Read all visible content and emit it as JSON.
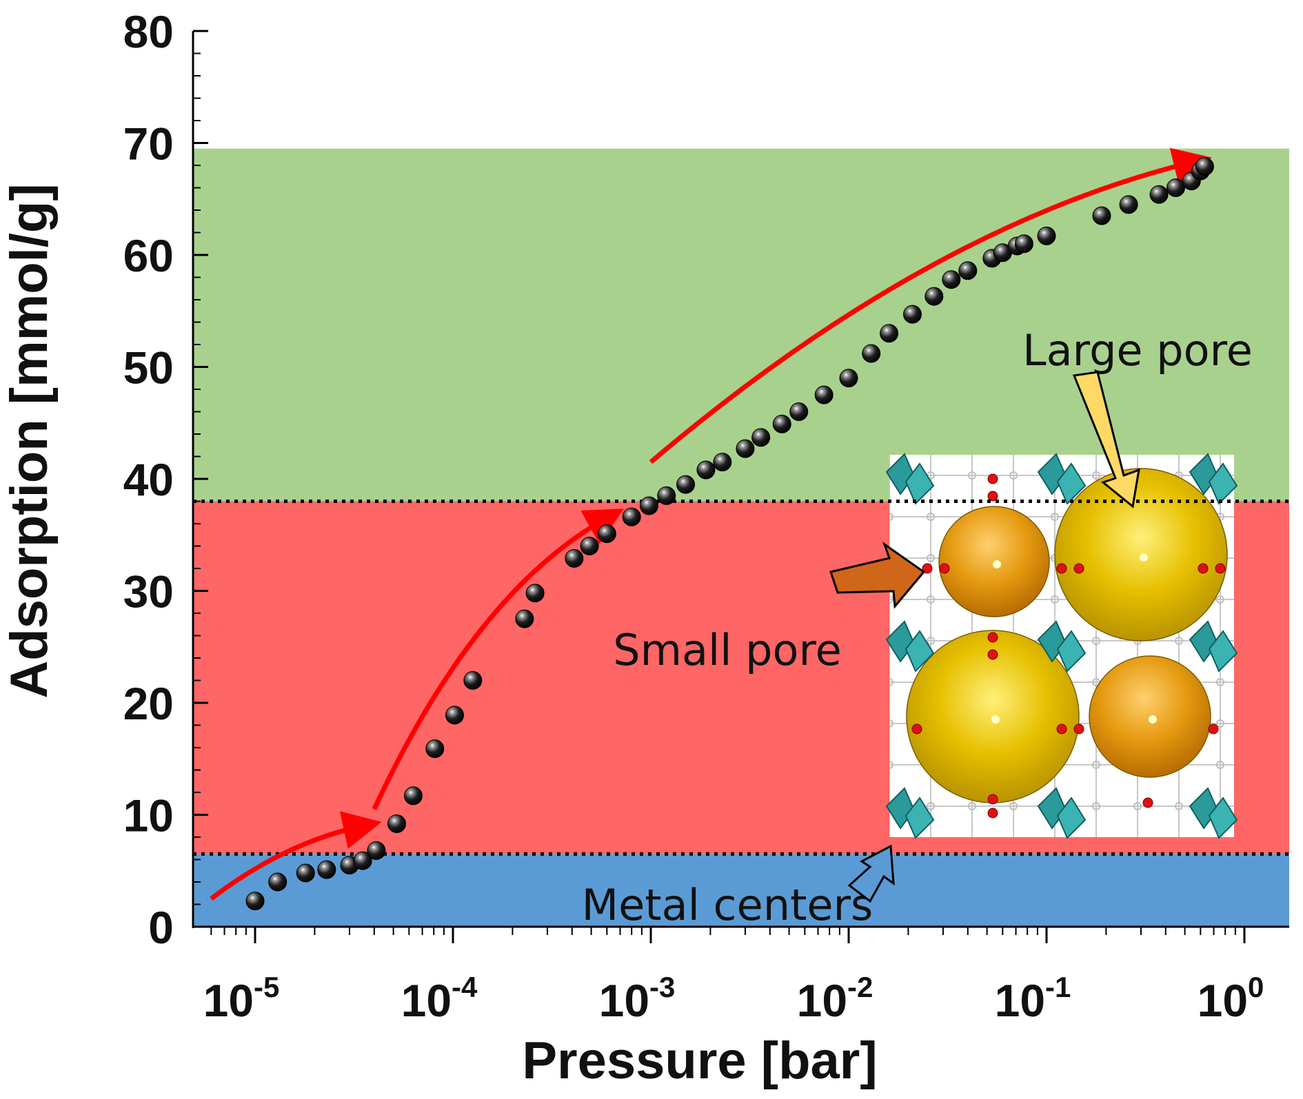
{
  "chart_data": {
    "type": "scatter",
    "xlabel": "Pressure [bar]",
    "ylabel": "Adsorption [mmol/g]",
    "x_scale": "log",
    "xlim": [
      5e-06,
      1.8
    ],
    "ylim": [
      0,
      80
    ],
    "y_ticks": [
      0,
      10,
      20,
      30,
      40,
      50,
      60,
      70,
      80
    ],
    "x_ticks": [
      {
        "base": "10",
        "exp": "-5",
        "value": 1e-05
      },
      {
        "base": "10",
        "exp": "-4",
        "value": 0.0001
      },
      {
        "base": "10",
        "exp": "-3",
        "value": 0.001
      },
      {
        "base": "10",
        "exp": "-2",
        "value": 0.01
      },
      {
        "base": "10",
        "exp": "-1",
        "value": 0.1
      },
      {
        "base": "10",
        "exp": "0",
        "value": 1
      }
    ],
    "regions": [
      {
        "name": "metal-centers",
        "y_from": 0,
        "y_to": 6.5,
        "color": "#5b9bd5"
      },
      {
        "name": "small-pore",
        "y_from": 6.5,
        "y_to": 38,
        "color": "#ff6666"
      },
      {
        "name": "large-pore",
        "y_from": 38,
        "y_to": 69.5,
        "color": "#a9d18e"
      }
    ],
    "boundaries": [
      6.5,
      38
    ],
    "series": [
      {
        "marker": "black-sphere",
        "points": [
          {
            "x": 1e-05,
            "y": 2.3
          },
          {
            "x": 1.3e-05,
            "y": 4.0
          },
          {
            "x": 1.8e-05,
            "y": 4.8
          },
          {
            "x": 2.3e-05,
            "y": 5.1
          },
          {
            "x": 3e-05,
            "y": 5.5
          },
          {
            "x": 3.5e-05,
            "y": 5.9
          },
          {
            "x": 4.1e-05,
            "y": 6.8
          },
          {
            "x": 5.2e-05,
            "y": 9.2
          },
          {
            "x": 6.3e-05,
            "y": 11.7
          },
          {
            "x": 8.1e-05,
            "y": 15.9
          },
          {
            "x": 0.000102,
            "y": 18.9
          },
          {
            "x": 0.000126,
            "y": 22.0
          },
          {
            "x": 0.00023,
            "y": 27.5
          },
          {
            "x": 0.00026,
            "y": 29.8
          },
          {
            "x": 0.00041,
            "y": 32.9
          },
          {
            "x": 0.00049,
            "y": 34.0
          },
          {
            "x": 0.0006,
            "y": 35.1
          },
          {
            "x": 0.0008,
            "y": 36.6
          },
          {
            "x": 0.00098,
            "y": 37.6
          },
          {
            "x": 0.0012,
            "y": 38.5
          },
          {
            "x": 0.0015,
            "y": 39.5
          },
          {
            "x": 0.0019,
            "y": 40.8
          },
          {
            "x": 0.0023,
            "y": 41.5
          },
          {
            "x": 0.003,
            "y": 42.7
          },
          {
            "x": 0.0036,
            "y": 43.7
          },
          {
            "x": 0.0046,
            "y": 44.9
          },
          {
            "x": 0.0056,
            "y": 46.0
          },
          {
            "x": 0.0075,
            "y": 47.5
          },
          {
            "x": 0.01,
            "y": 49.0
          },
          {
            "x": 0.013,
            "y": 51.2
          },
          {
            "x": 0.016,
            "y": 53.0
          },
          {
            "x": 0.021,
            "y": 54.7
          },
          {
            "x": 0.027,
            "y": 56.3
          },
          {
            "x": 0.033,
            "y": 57.8
          },
          {
            "x": 0.04,
            "y": 58.6
          },
          {
            "x": 0.053,
            "y": 59.7
          },
          {
            "x": 0.06,
            "y": 60.2
          },
          {
            "x": 0.071,
            "y": 60.8
          },
          {
            "x": 0.077,
            "y": 61.0
          },
          {
            "x": 0.1,
            "y": 61.7
          },
          {
            "x": 0.19,
            "y": 63.5
          },
          {
            "x": 0.26,
            "y": 64.5
          },
          {
            "x": 0.37,
            "y": 65.4
          },
          {
            "x": 0.45,
            "y": 66.0
          },
          {
            "x": 0.54,
            "y": 66.6
          },
          {
            "x": 0.6,
            "y": 67.5
          },
          {
            "x": 0.63,
            "y": 67.9
          }
        ]
      }
    ],
    "trend_arrows": [
      {
        "color": "#ff0000",
        "path": [
          [
            6e-06,
            2.5
          ],
          [
            1.4e-05,
            7.5
          ],
          [
            3.5e-05,
            9.0
          ]
        ]
      },
      {
        "color": "#ff0000",
        "path": [
          [
            4e-05,
            10.5
          ],
          [
            0.00013,
            30.0
          ],
          [
            0.0006,
            36.5
          ]
        ]
      },
      {
        "color": "#ff0000",
        "path": [
          [
            0.001,
            41.5
          ],
          [
            0.025,
            62.5
          ],
          [
            0.55,
            68.3
          ]
        ]
      }
    ],
    "annotations": [
      {
        "text": "Large pore"
      },
      {
        "text": "Small pore"
      },
      {
        "text": "Metal centers"
      }
    ]
  }
}
